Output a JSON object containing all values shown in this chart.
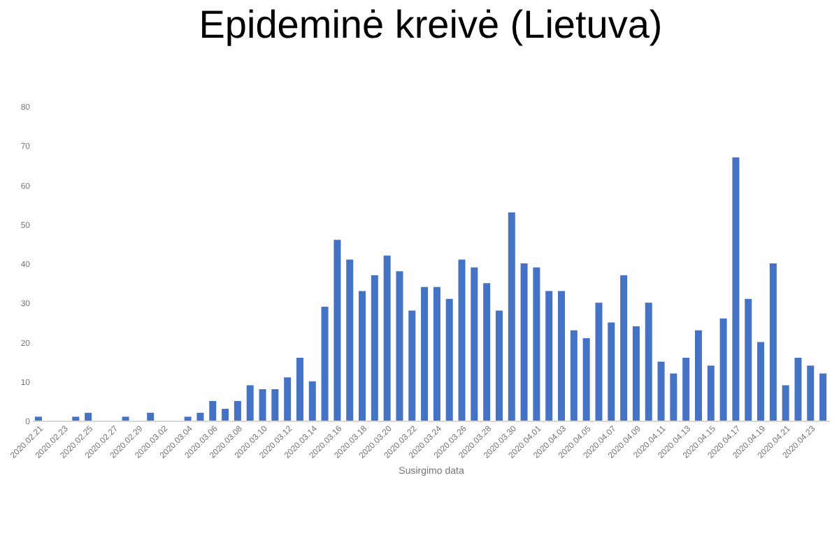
{
  "chart_data": {
    "type": "bar",
    "title": "Epideminė kreivė (Lietuva)",
    "xlabel": "Susirgimo data",
    "categories": [
      "2020.02.21",
      null,
      "2020.02.23",
      null,
      "2020.02.25",
      null,
      "2020.02.27",
      null,
      "2020.02.29",
      null,
      "2020.03.02",
      null,
      "2020.03.04",
      null,
      "2020.03.06",
      null,
      "2020.03.08",
      null,
      "2020.03.10",
      null,
      "2020.03.12",
      null,
      "2020.03.14",
      null,
      "2020.03.16",
      null,
      "2020.03.18",
      null,
      "2020.03.20",
      null,
      "2020.03.22",
      null,
      "2020.03.24",
      null,
      "2020.03.26",
      null,
      "2020.03.28",
      null,
      "2020.03.30",
      null,
      "2020.04.01",
      null,
      "2020.04.03",
      null,
      "2020.04.05",
      null,
      "2020.04.07",
      null,
      "2020.04.09",
      null,
      "2020.04.11",
      null,
      "2020.04.13",
      null,
      "2020.04.15",
      null,
      "2020.04.17",
      null,
      "2020.04.19",
      null,
      "2020.04.21",
      null,
      "2020.04.23",
      null
    ],
    "values": [
      1,
      0,
      0,
      1,
      2,
      0,
      0,
      1,
      0,
      2,
      0,
      0,
      1,
      2,
      5,
      3,
      5,
      9,
      8,
      8,
      11,
      16,
      10,
      29,
      46,
      41,
      33,
      37,
      42,
      38,
      28,
      34,
      34,
      31,
      41,
      39,
      35,
      28,
      53,
      40,
      39,
      33,
      33,
      23,
      21,
      30,
      25,
      37,
      24,
      30,
      15,
      12,
      16,
      23,
      14,
      26,
      67,
      31,
      20,
      40,
      9,
      16,
      14,
      12
    ],
    "color": "#4472c4",
    "ylim": [
      0,
      80
    ],
    "yticks": [
      0,
      10,
      20,
      30,
      40,
      50,
      60,
      70,
      80
    ],
    "grid": false
  }
}
